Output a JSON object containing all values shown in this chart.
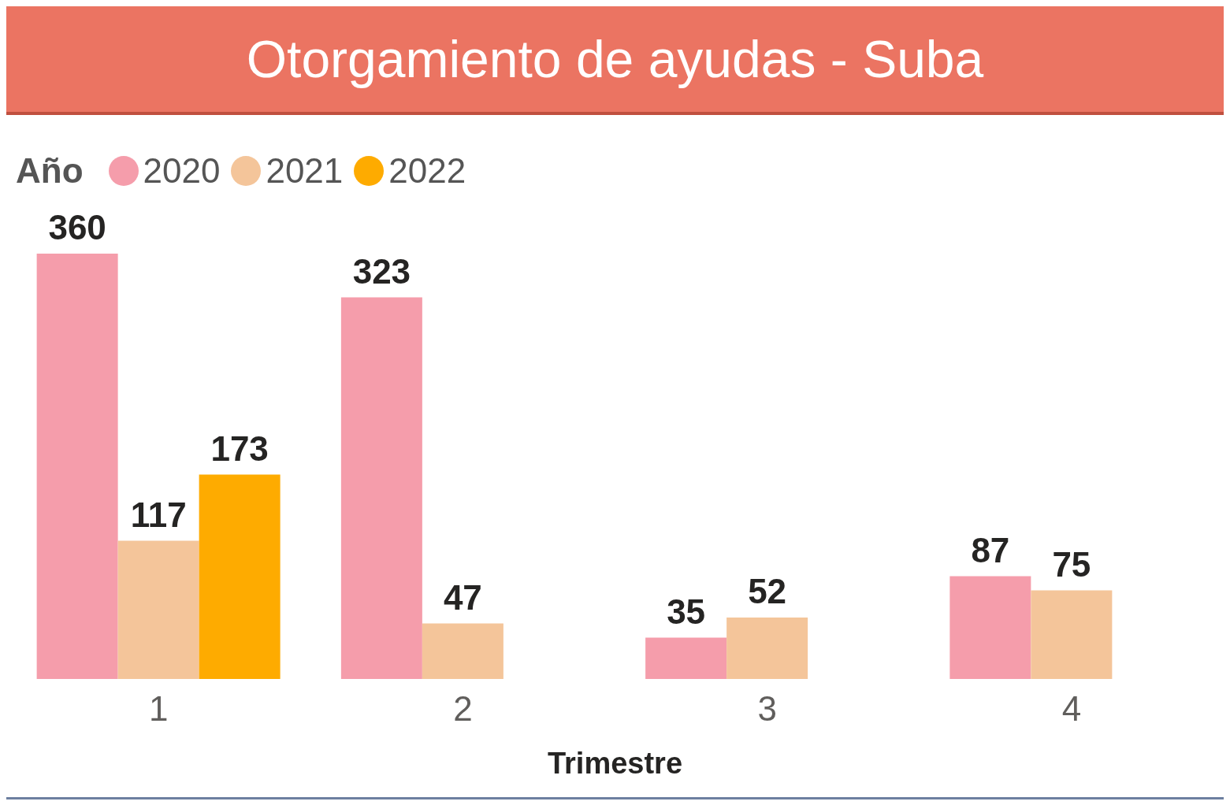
{
  "chart_data": {
    "type": "bar",
    "title": "Otorgamiento de ayudas - Suba",
    "xlabel": "Trimestre",
    "legend_title": "Año",
    "categories": [
      "1",
      "2",
      "3",
      "4"
    ],
    "series": [
      {
        "name": "2020",
        "color": "#f59dab",
        "values": [
          360,
          323,
          35,
          87
        ]
      },
      {
        "name": "2021",
        "color": "#f4c59a",
        "values": [
          117,
          47,
          52,
          75
        ]
      },
      {
        "name": "2022",
        "color": "#feab00",
        "values": [
          173,
          null,
          null,
          null
        ]
      }
    ],
    "data_labels": true,
    "legend": "top left"
  }
}
